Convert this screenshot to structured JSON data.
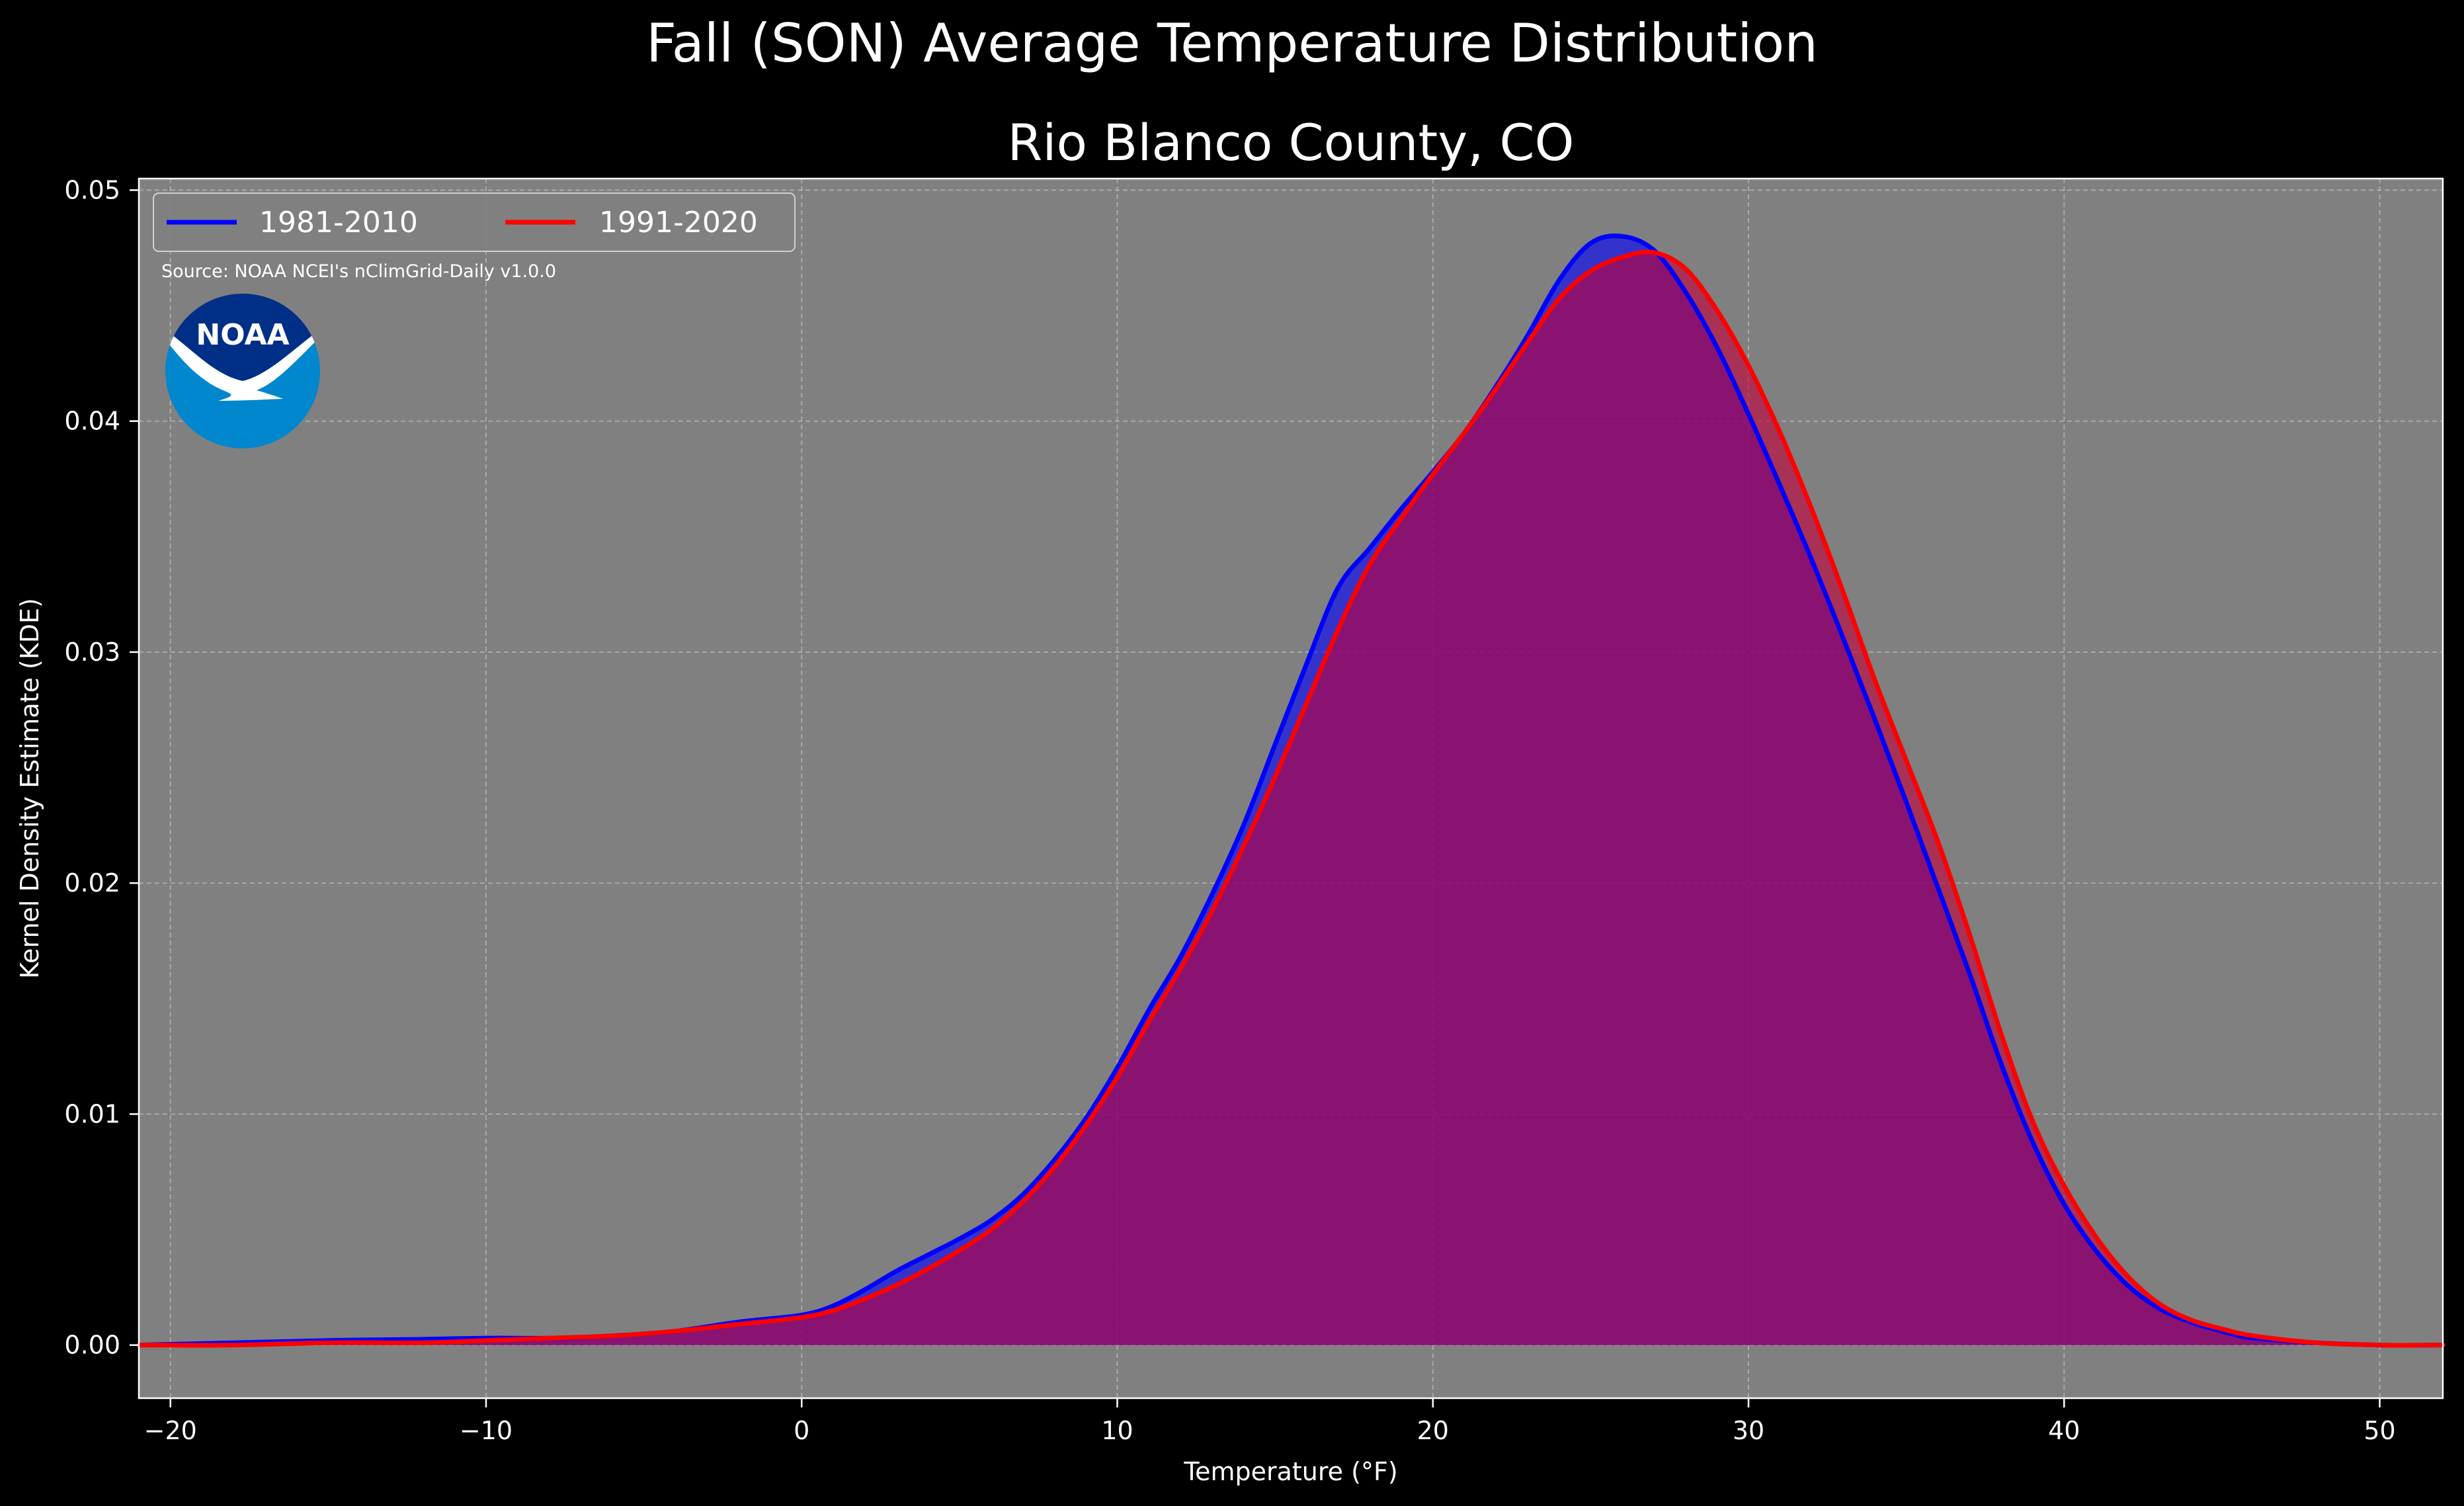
{
  "figure": {
    "suptitle": "Fall (SON) Average Temperature Distribution",
    "background_color": "#000000"
  },
  "chart_data": {
    "type": "area",
    "title": "Rio Blanco County, CO",
    "xlabel": "Temperature (°F)",
    "ylabel": "Kernel Density Estimate (KDE)",
    "xlim": [
      -21,
      52
    ],
    "ylim": [
      -0.0023,
      0.0505
    ],
    "x_ticks": [
      -20,
      -10,
      0,
      10,
      20,
      30,
      40,
      50
    ],
    "x_tick_labels": [
      "−20",
      "−10",
      "0",
      "10",
      "20",
      "30",
      "40",
      "50"
    ],
    "y_ticks": [
      0.0,
      0.01,
      0.02,
      0.03,
      0.04,
      0.05
    ],
    "y_tick_labels": [
      "0.00",
      "0.01",
      "0.02",
      "0.03",
      "0.04",
      "0.05"
    ],
    "grid": true,
    "legend_position": "top-left",
    "plot_background": "#808080",
    "source_note": "Source: NOAA NCEI's nClimGrid-Daily v1.0.0",
    "logo_text": "NOAA",
    "series": [
      {
        "name": "1981-2010",
        "color": "#0000ff",
        "fill_color": "#0000ff",
        "x": [
          -21,
          -18,
          -15,
          -12,
          -10,
          -8,
          -6,
          -4,
          -2,
          0,
          1,
          2,
          3,
          4,
          5,
          6,
          7,
          8,
          9,
          10,
          11,
          12,
          13,
          14,
          15,
          16,
          17,
          18,
          19,
          20,
          21,
          22,
          23,
          24,
          25,
          26,
          27,
          28,
          29,
          30,
          31,
          32,
          33,
          34,
          35,
          36,
          37,
          38,
          39,
          40,
          41,
          42,
          43,
          44,
          45,
          46,
          48,
          50,
          52
        ],
        "y": [
          0.0,
          0.0001,
          0.0002,
          0.00025,
          0.0003,
          0.0003,
          0.0004,
          0.0006,
          0.001,
          0.0013,
          0.0017,
          0.0024,
          0.0032,
          0.0039,
          0.0046,
          0.0054,
          0.0065,
          0.008,
          0.0098,
          0.012,
          0.0145,
          0.0168,
          0.0195,
          0.0225,
          0.026,
          0.0295,
          0.0328,
          0.0345,
          0.0362,
          0.0378,
          0.0395,
          0.0415,
          0.0437,
          0.0461,
          0.0477,
          0.048,
          0.0474,
          0.0456,
          0.0432,
          0.0403,
          0.0372,
          0.034,
          0.0306,
          0.0271,
          0.0235,
          0.0198,
          0.0161,
          0.0122,
          0.0088,
          0.0061,
          0.0041,
          0.0026,
          0.0016,
          0.001,
          0.0006,
          0.0003,
          0.0001,
          0.0,
          0.0
        ]
      },
      {
        "name": "1991-2020",
        "color": "#ff0000",
        "fill_color": "#c0003a",
        "x": [
          -21,
          -18,
          -15,
          -12,
          -10,
          -8,
          -6,
          -4,
          -2,
          0,
          1,
          2,
          3,
          4,
          5,
          6,
          7,
          8,
          9,
          10,
          11,
          12,
          13,
          14,
          15,
          16,
          17,
          18,
          19,
          20,
          21,
          22,
          23,
          24,
          25,
          26,
          27,
          28,
          29,
          30,
          31,
          32,
          33,
          34,
          35,
          36,
          37,
          38,
          39,
          40,
          41,
          42,
          43,
          44,
          45,
          46,
          48,
          50,
          52
        ],
        "y": [
          0.0,
          0.0,
          0.0001,
          0.0001,
          0.0002,
          0.0003,
          0.0004,
          0.0006,
          0.0009,
          0.0012,
          0.0015,
          0.002,
          0.0026,
          0.0033,
          0.0041,
          0.005,
          0.0062,
          0.0077,
          0.0095,
          0.0116,
          0.014,
          0.0163,
          0.0188,
          0.0216,
          0.0246,
          0.0278,
          0.031,
          0.0338,
          0.0358,
          0.0377,
          0.0395,
          0.0414,
          0.0434,
          0.0453,
          0.0465,
          0.0471,
          0.0473,
          0.0466,
          0.0448,
          0.0424,
          0.0395,
          0.0362,
          0.0326,
          0.0288,
          0.0253,
          0.0218,
          0.0178,
          0.0135,
          0.0097,
          0.0069,
          0.0047,
          0.003,
          0.0018,
          0.0011,
          0.0007,
          0.0004,
          0.0001,
          0.0,
          0.0
        ]
      }
    ]
  }
}
